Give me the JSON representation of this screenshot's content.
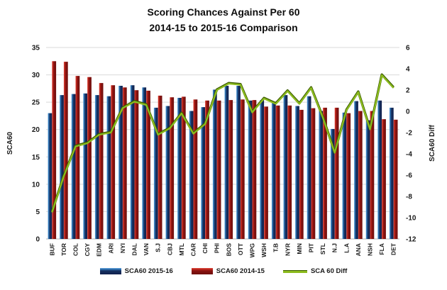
{
  "chart_data": {
    "type": "combo_bar_line",
    "title_lines": [
      "Scoring Chances Against Per 60",
      "2014-15 to 2015-16 Comparison"
    ],
    "categories": [
      "BUF",
      "TOR",
      "COL",
      "CGY",
      "EDM",
      "ARI",
      "NYI",
      "DAL",
      "VAN",
      "S.J",
      "CBJ",
      "MTL",
      "CAR",
      "CHI",
      "PHI",
      "BOS",
      "OTT",
      "WPG",
      "WSH",
      "T.B",
      "NYR",
      "MIN",
      "PIT",
      "STL",
      "N.J",
      "L.A",
      "ANA",
      "NSH",
      "FLA",
      "DET"
    ],
    "series": [
      {
        "name": "SCA60 2015-16",
        "type": "bar",
        "axis": "left",
        "values": [
          23.0,
          26.3,
          26.5,
          26.6,
          26.3,
          26.1,
          28.0,
          28.1,
          27.7,
          24.0,
          24.3,
          25.8,
          23.4,
          24.1,
          27.3,
          28.0,
          28.0,
          25.3,
          25.4,
          25.1,
          26.3,
          24.3,
          26.1,
          23.4,
          20.1,
          23.1,
          25.2,
          21.7,
          25.3,
          24.0
        ]
      },
      {
        "name": "SCA60 2014-15",
        "type": "bar",
        "axis": "left",
        "values": [
          32.5,
          32.4,
          29.8,
          29.6,
          28.5,
          28.1,
          27.7,
          27.2,
          27.1,
          26.2,
          25.9,
          26.0,
          25.5,
          25.3,
          25.3,
          25.4,
          25.5,
          25.4,
          24.2,
          24.4,
          24.4,
          23.6,
          23.9,
          24.0,
          24.0,
          23.0,
          23.4,
          23.4,
          21.9,
          21.8
        ]
      },
      {
        "name": "SCA 60 Diff",
        "type": "line",
        "axis": "right",
        "values": [
          -9.5,
          -6.1,
          -3.3,
          -3.0,
          -2.2,
          -2.0,
          0.3,
          0.9,
          0.6,
          -2.2,
          -1.6,
          -0.2,
          -2.1,
          -1.2,
          2.0,
          2.6,
          2.5,
          -0.1,
          1.2,
          0.7,
          1.9,
          0.7,
          2.2,
          -0.6,
          -3.9,
          0.1,
          1.8,
          -1.7,
          3.4,
          2.2
        ]
      }
    ],
    "left_axis": {
      "label": "SCA60",
      "min": 0,
      "max": 35,
      "ticks": [
        35,
        30,
        25,
        20,
        15,
        10,
        5,
        0
      ]
    },
    "right_axis": {
      "label": "SCA60 Diff",
      "min": -12,
      "max": 6,
      "ticks": [
        6,
        4,
        2,
        0,
        -2,
        -4,
        -6,
        -8,
        -10,
        -12
      ]
    },
    "legend": [
      "SCA60 2015-16",
      "SCA60 2014-15",
      "SCA 60 Diff"
    ],
    "grid_on": true,
    "legend_position": "bottom",
    "colors": {
      "bar_2015_edge": "#6fa8dc",
      "bar_2015_mid": "#2e75b6",
      "bar_2015_body": "#16305f",
      "bar_2015_dark": "#101f4c",
      "bar_2014_edge": "#e05348",
      "bar_2014_mid": "#c0281e",
      "bar_2014_body": "#871210",
      "bar_2014_dark": "#6e0e0c",
      "line": "#8cbc1e",
      "line_edge": "#3c5c00",
      "grid": "#d9d9d9",
      "axis": "#b3b3b3",
      "text": "#1a1a1a"
    }
  }
}
